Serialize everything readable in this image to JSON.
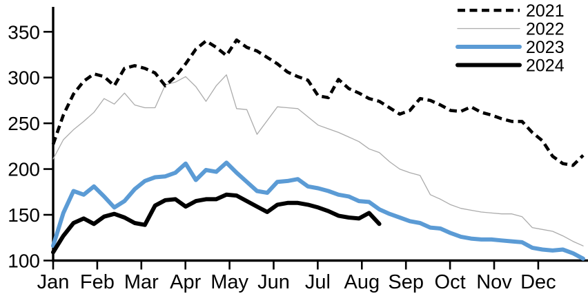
{
  "figure": {
    "background": "#ffffff",
    "text_color": "#000000",
    "axis_color": "#000000"
  },
  "chart_data": {
    "type": "line",
    "title": "",
    "xlabel": "",
    "ylabel": "",
    "grid": false,
    "legend_position": "top-right",
    "x_axis": {
      "categories": [
        "Jan",
        "Feb",
        "Mar",
        "Apr",
        "May",
        "Jun",
        "Jul",
        "Aug",
        "Sep",
        "Oct",
        "Nov",
        "Dec"
      ],
      "unit": "weekly"
    },
    "y_axis": {
      "ticks": [
        100,
        150,
        200,
        250,
        300,
        350
      ],
      "range": [
        100,
        380
      ]
    },
    "series": [
      {
        "name": "2021",
        "color": "#000000",
        "style": "dashed",
        "stroke_width": 4.6,
        "values": [
          227,
          259,
          282,
          296,
          304,
          301,
          291,
          310,
          313,
          310,
          305,
          291,
          301,
          315,
          331,
          340,
          333,
          324,
          341,
          333,
          329,
          322,
          315,
          306,
          301,
          297,
          280,
          278,
          298,
          288,
          283,
          277,
          274,
          267,
          260,
          264,
          277,
          275,
          270,
          264,
          263,
          268,
          262,
          259,
          255,
          252,
          252,
          240,
          231,
          214,
          206,
          204,
          215
        ]
      },
      {
        "name": "2022",
        "color": "#ababab",
        "style": "solid",
        "stroke_width": 1.3,
        "values": [
          211,
          232,
          243,
          252,
          262,
          277,
          271,
          283,
          270,
          267,
          267,
          292,
          295,
          301,
          290,
          274,
          291,
          303,
          266,
          265,
          238,
          253,
          268,
          267,
          266,
          257,
          248,
          244,
          240,
          235,
          230,
          222,
          218,
          208,
          200,
          196,
          193,
          172,
          167,
          161,
          157,
          155,
          153,
          152,
          151,
          151,
          148,
          136,
          134,
          132,
          127,
          121,
          116
        ]
      },
      {
        "name": "2023",
        "color": "#5b9bd5",
        "style": "solid",
        "stroke_width": 6,
        "values": [
          116,
          152,
          176,
          172,
          181,
          170,
          158,
          165,
          178,
          187,
          191,
          192,
          196,
          206,
          188,
          199,
          197,
          207,
          196,
          186,
          176,
          174,
          186,
          187,
          189,
          181,
          179,
          176,
          172,
          170,
          165,
          164,
          156,
          151,
          147,
          143,
          141,
          136,
          135,
          130,
          126,
          124,
          123,
          123,
          122,
          121,
          120,
          114,
          112,
          111,
          112,
          108,
          102
        ]
      },
      {
        "name": "2024",
        "color": "#000000",
        "style": "solid",
        "stroke_width": 6,
        "values": [
          109,
          127,
          141,
          146,
          140,
          148,
          151,
          147,
          141,
          139,
          160,
          166,
          167,
          159,
          165,
          167,
          167,
          172,
          171,
          165,
          159,
          153,
          161,
          163,
          163,
          161,
          158,
          154,
          149,
          147,
          146,
          152,
          140
        ]
      }
    ]
  }
}
